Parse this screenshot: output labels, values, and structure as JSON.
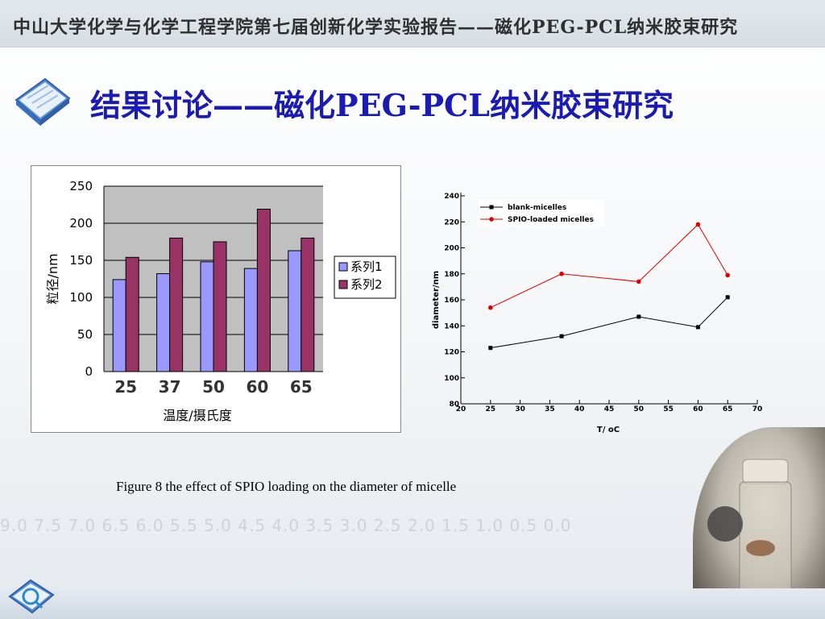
{
  "header": {
    "text": "中山大学化学与化学工程学院第七届创新化学实验报告——磁化PEG-PCL纳米胶束研究"
  },
  "title": "结果讨论——磁化PEG-PCL纳米胶束研究",
  "caption": "Figure 8 the effect of SPIO loading on the diameter of micelle",
  "background_axis_text": "9.0 7.5 7.0 6.5 6.0 5.5 5.0 4.5 4.0 3.5 3.0 2.5 2.0 1.5 1.0 0.5 0.0",
  "colors": {
    "title": "#1a1ab5",
    "series1_bar": "#9999ff",
    "series2_bar": "#993366",
    "plot_bg": "#c0c0c0",
    "line_blank": "#000000",
    "line_spio": "#e00000"
  },
  "icons": [
    "book-icon",
    "magnifier-book-icon",
    "vial-photo"
  ],
  "chart_data": [
    {
      "type": "bar",
      "categories": [
        "25",
        "37",
        "50",
        "60",
        "65"
      ],
      "series": [
        {
          "name": "系列1",
          "values": [
            124,
            132,
            148,
            139,
            163
          ]
        },
        {
          "name": "系列2",
          "values": [
            154,
            180,
            175,
            219,
            180
          ]
        }
      ],
      "ylim": [
        0,
        250
      ],
      "yticks": [
        0,
        50,
        100,
        150,
        200,
        250
      ],
      "xlabel": "温度/摄氏度",
      "ylabel": "粒径/nm",
      "grid": true,
      "legend": "right"
    },
    {
      "type": "line",
      "x": [
        25,
        37,
        50,
        60,
        65
      ],
      "series": [
        {
          "name": "blank-micelles",
          "values": [
            123,
            132,
            147,
            139,
            162
          ],
          "color": "#000000",
          "marker": "square"
        },
        {
          "name": "SPIO-loaded micelles",
          "values": [
            154,
            180,
            174,
            218,
            179
          ],
          "color": "#e00000",
          "marker": "circle"
        }
      ],
      "xlim": [
        20,
        70
      ],
      "xticks": [
        20,
        25,
        30,
        35,
        40,
        45,
        50,
        55,
        60,
        65,
        70
      ],
      "ylim": [
        80,
        240
      ],
      "yticks": [
        80,
        100,
        120,
        140,
        160,
        180,
        200,
        220,
        240
      ],
      "xlabel": "T/ oC",
      "ylabel": "diameter/nm",
      "grid": false,
      "legend": "top-left"
    }
  ]
}
